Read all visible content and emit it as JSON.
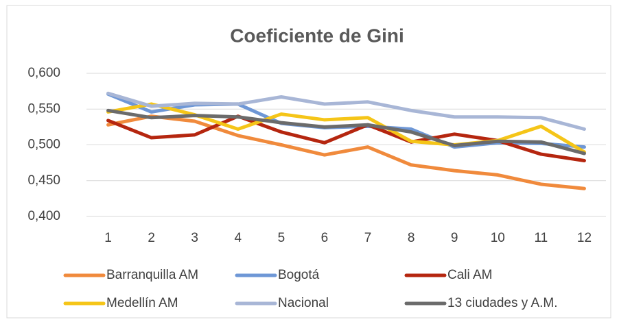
{
  "chart_data": {
    "type": "line",
    "title": "Coeficiente de Gini",
    "categories": [
      "1",
      "2",
      "3",
      "4",
      "5",
      "6",
      "7",
      "8",
      "9",
      "10",
      "11",
      "12"
    ],
    "series": [
      {
        "name": "Barranquilla AM",
        "color": "#f08a3c",
        "values": [
          0.528,
          0.54,
          0.533,
          0.513,
          0.5,
          0.486,
          0.497,
          0.472,
          0.464,
          0.458,
          0.445,
          0.439
        ]
      },
      {
        "name": "Bogotá",
        "color": "#6e97d6",
        "values": [
          0.571,
          0.546,
          0.556,
          0.557,
          0.53,
          0.524,
          0.526,
          0.522,
          0.497,
          0.503,
          0.502,
          0.497
        ]
      },
      {
        "name": "Cali AM",
        "color": "#b5260f",
        "values": [
          0.534,
          0.51,
          0.514,
          0.54,
          0.518,
          0.503,
          0.528,
          0.504,
          0.515,
          0.506,
          0.487,
          0.478
        ]
      },
      {
        "name": "Medellín AM",
        "color": "#f5c518",
        "values": [
          0.546,
          0.557,
          0.542,
          0.522,
          0.543,
          0.535,
          0.538,
          0.505,
          0.5,
          0.506,
          0.526,
          0.49
        ]
      },
      {
        "name": "Nacional",
        "color": "#a8b6d6",
        "values": [
          0.572,
          0.554,
          0.558,
          0.557,
          0.567,
          0.557,
          0.56,
          0.548,
          0.539,
          0.539,
          0.538,
          0.522
        ]
      },
      {
        "name": "13 ciudades y A.M.",
        "color": "#6b6b6b",
        "values": [
          0.548,
          0.538,
          0.541,
          0.539,
          0.531,
          0.525,
          0.528,
          0.518,
          0.499,
          0.505,
          0.504,
          0.488
        ]
      }
    ],
    "ylim": [
      0.4,
      0.6
    ],
    "yticks": [
      {
        "value": 0.4,
        "label": "0,400"
      },
      {
        "value": 0.45,
        "label": "0,450"
      },
      {
        "value": 0.5,
        "label": "0,500"
      },
      {
        "value": 0.55,
        "label": "0,550"
      },
      {
        "value": 0.6,
        "label": "0,600"
      }
    ],
    "grid": true,
    "legend": "bottom"
  }
}
